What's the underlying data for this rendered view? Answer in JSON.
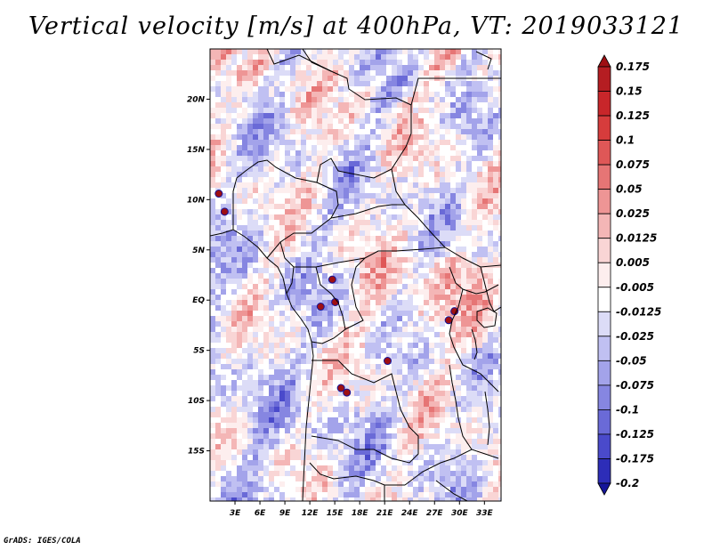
{
  "title": "Vertical velocity [m/s] at 400hPa, VT: 2019033121",
  "credit": "GrADS: IGES/COLA",
  "map": {
    "variable": "Vertical velocity",
    "units": "m/s",
    "level": "400hPa",
    "valid_time": "2019033121",
    "lon_range": [
      0,
      35
    ],
    "lat_range": [
      -20,
      25
    ],
    "lon_ticks": [
      "3E",
      "6E",
      "9E",
      "12E",
      "15E",
      "18E",
      "21E",
      "24E",
      "27E",
      "30E",
      "33E"
    ],
    "lat_ticks": [
      "20N",
      "15N",
      "10N",
      "5N",
      "EQ",
      "5S",
      "10S",
      "15S"
    ]
  },
  "colorbar": {
    "levels": [
      "0.175",
      "0.15",
      "0.125",
      "0.1",
      "0.075",
      "0.05",
      "0.025",
      "0.0125",
      "0.005",
      "-0.005",
      "-0.0125",
      "-0.025",
      "-0.05",
      "-0.075",
      "-0.1",
      "-0.125",
      "-0.175",
      "-0.2"
    ],
    "colors": [
      "#9e0f13",
      "#b51d22",
      "#c8262a",
      "#d63c3c",
      "#df5757",
      "#e67575",
      "#ee9595",
      "#f4b6b6",
      "#f9d5d5",
      "#fdeeee",
      "#ffffff",
      "#dcdcf7",
      "#c0c0f2",
      "#a3a3ea",
      "#8686e1",
      "#6a6ad7",
      "#4a4acb",
      "#2d2db8",
      "#15159a"
    ]
  }
}
